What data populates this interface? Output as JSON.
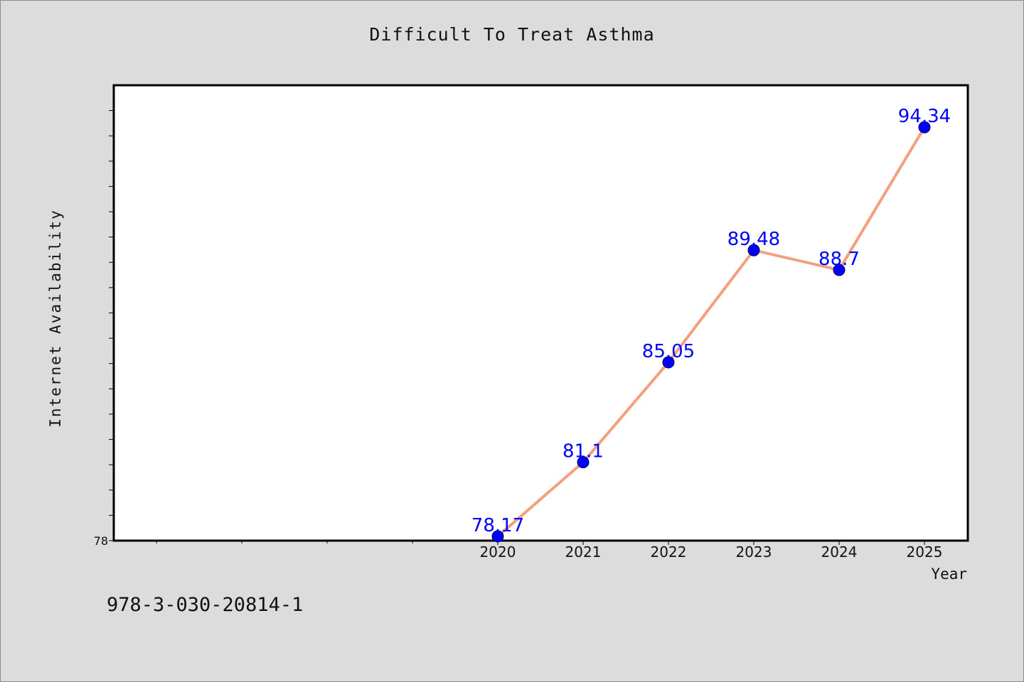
{
  "chart_data": {
    "type": "line",
    "title": "Difficult To Treat Asthma",
    "xlabel": "Year",
    "ylabel": "Internet Availability",
    "categories": [
      "2020",
      "2021",
      "2022",
      "2023",
      "2024",
      "2025"
    ],
    "x_slots": [
      "",
      "",
      "",
      "",
      "2020",
      "2021",
      "2022",
      "2023",
      "2024",
      "2025"
    ],
    "series": [
      {
        "values": [
          78.17,
          81.1,
          85.05,
          89.48,
          88.7,
          94.34
        ]
      }
    ],
    "data_labels": [
      "78.17",
      "81.1",
      "85.05",
      "89.48",
      "88.7",
      "94.34"
    ],
    "ylim": [
      78,
      96
    ],
    "y_tick_labels": [
      {
        "value": 78,
        "label": "78"
      }
    ],
    "y_minor_step": 1,
    "grid": false,
    "colors": {
      "line": "#f4a07e",
      "marker": "#0000ff",
      "label": "#0000ff",
      "background": "#dcdcdc",
      "plot_bg": "#ffffff"
    }
  },
  "footer": {
    "code": "978-3-030-20814-1"
  }
}
